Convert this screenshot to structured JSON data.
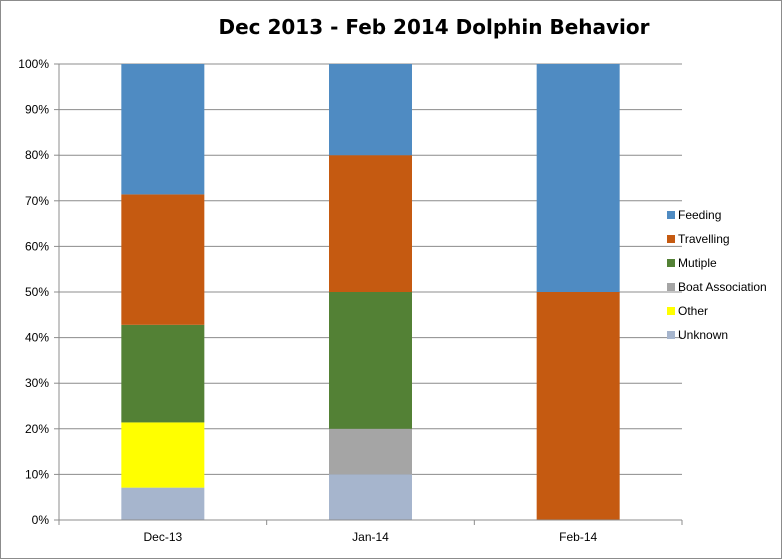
{
  "chart_data": {
    "type": "bar",
    "stacked": true,
    "normalized": true,
    "title": "Dec 2013 - Feb 2014 Dolphin Behavior",
    "xlabel": "",
    "ylabel": "",
    "ylim": [
      0,
      100
    ],
    "yticks": [
      "0%",
      "10%",
      "20%",
      "30%",
      "40%",
      "50%",
      "60%",
      "70%",
      "80%",
      "90%",
      "100%"
    ],
    "grid": true,
    "legend_position": "right",
    "categories": [
      "Dec-13",
      "Jan-14",
      "Feb-14"
    ],
    "series": [
      {
        "name": "Unknown",
        "color": "#a6b5cd",
        "values": [
          7.1,
          10,
          0
        ]
      },
      {
        "name": "Other",
        "color": "#ffff00",
        "values": [
          14.3,
          0,
          0
        ]
      },
      {
        "name": "Boat Association",
        "color": "#a5a5a5",
        "values": [
          0,
          10,
          0
        ]
      },
      {
        "name": "Mutiple",
        "color": "#538135",
        "values": [
          21.4,
          30,
          0
        ]
      },
      {
        "name": "Travelling",
        "color": "#c55a11",
        "values": [
          28.6,
          30,
          50
        ]
      },
      {
        "name": "Feeding",
        "color": "#4f8bc2",
        "values": [
          28.6,
          20,
          50
        ]
      }
    ],
    "legend_order": [
      "Feeding",
      "Travelling",
      "Mutiple",
      "Boat Association",
      "Other",
      "Unknown"
    ]
  }
}
